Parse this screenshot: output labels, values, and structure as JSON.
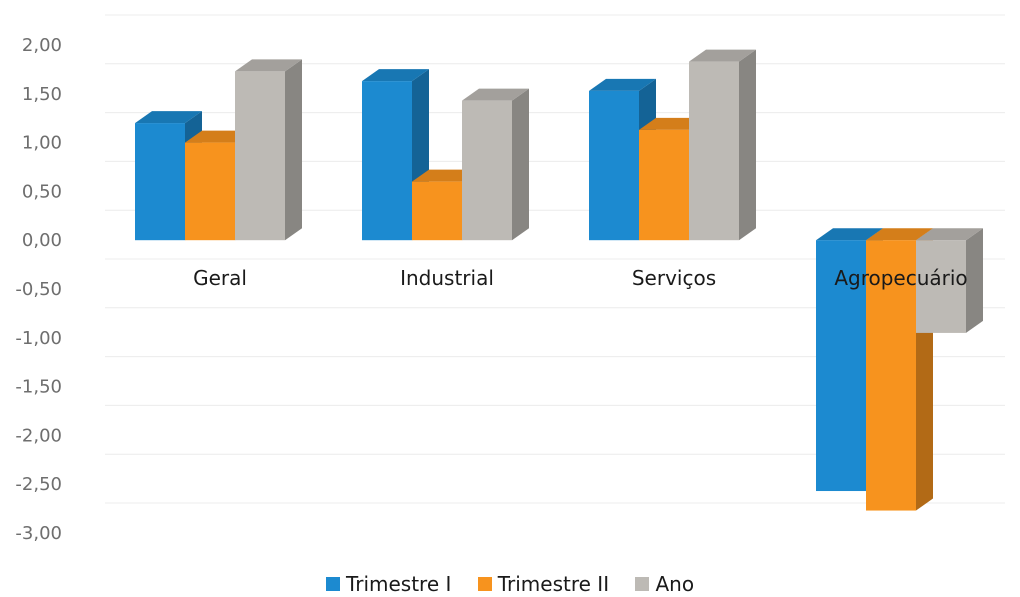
{
  "chart_data": {
    "type": "bar",
    "categories": [
      "Geral",
      "Industrial",
      "Serviços",
      "Agropecuário"
    ],
    "series": [
      {
        "name": "Trimestre I",
        "color": "#1c8ad0",
        "values": [
          1.2,
          1.63,
          1.53,
          -2.57
        ]
      },
      {
        "name": "Trimestre II",
        "color": "#f7931e",
        "values": [
          1.0,
          0.6,
          1.13,
          -2.77
        ]
      },
      {
        "name": "Ano",
        "color": "#bdbab5",
        "values": [
          1.73,
          1.43,
          1.83,
          -0.95
        ]
      }
    ],
    "ylim": [
      -3.0,
      2.0
    ],
    "yticks": [
      "2,00",
      "1,50",
      "1,00",
      "0,50",
      "0,00",
      "-0,50",
      "-1,00",
      "-1,50",
      "-2,00",
      "-2,50",
      "-3,00"
    ],
    "grid": true,
    "legend_position": "bottom"
  }
}
